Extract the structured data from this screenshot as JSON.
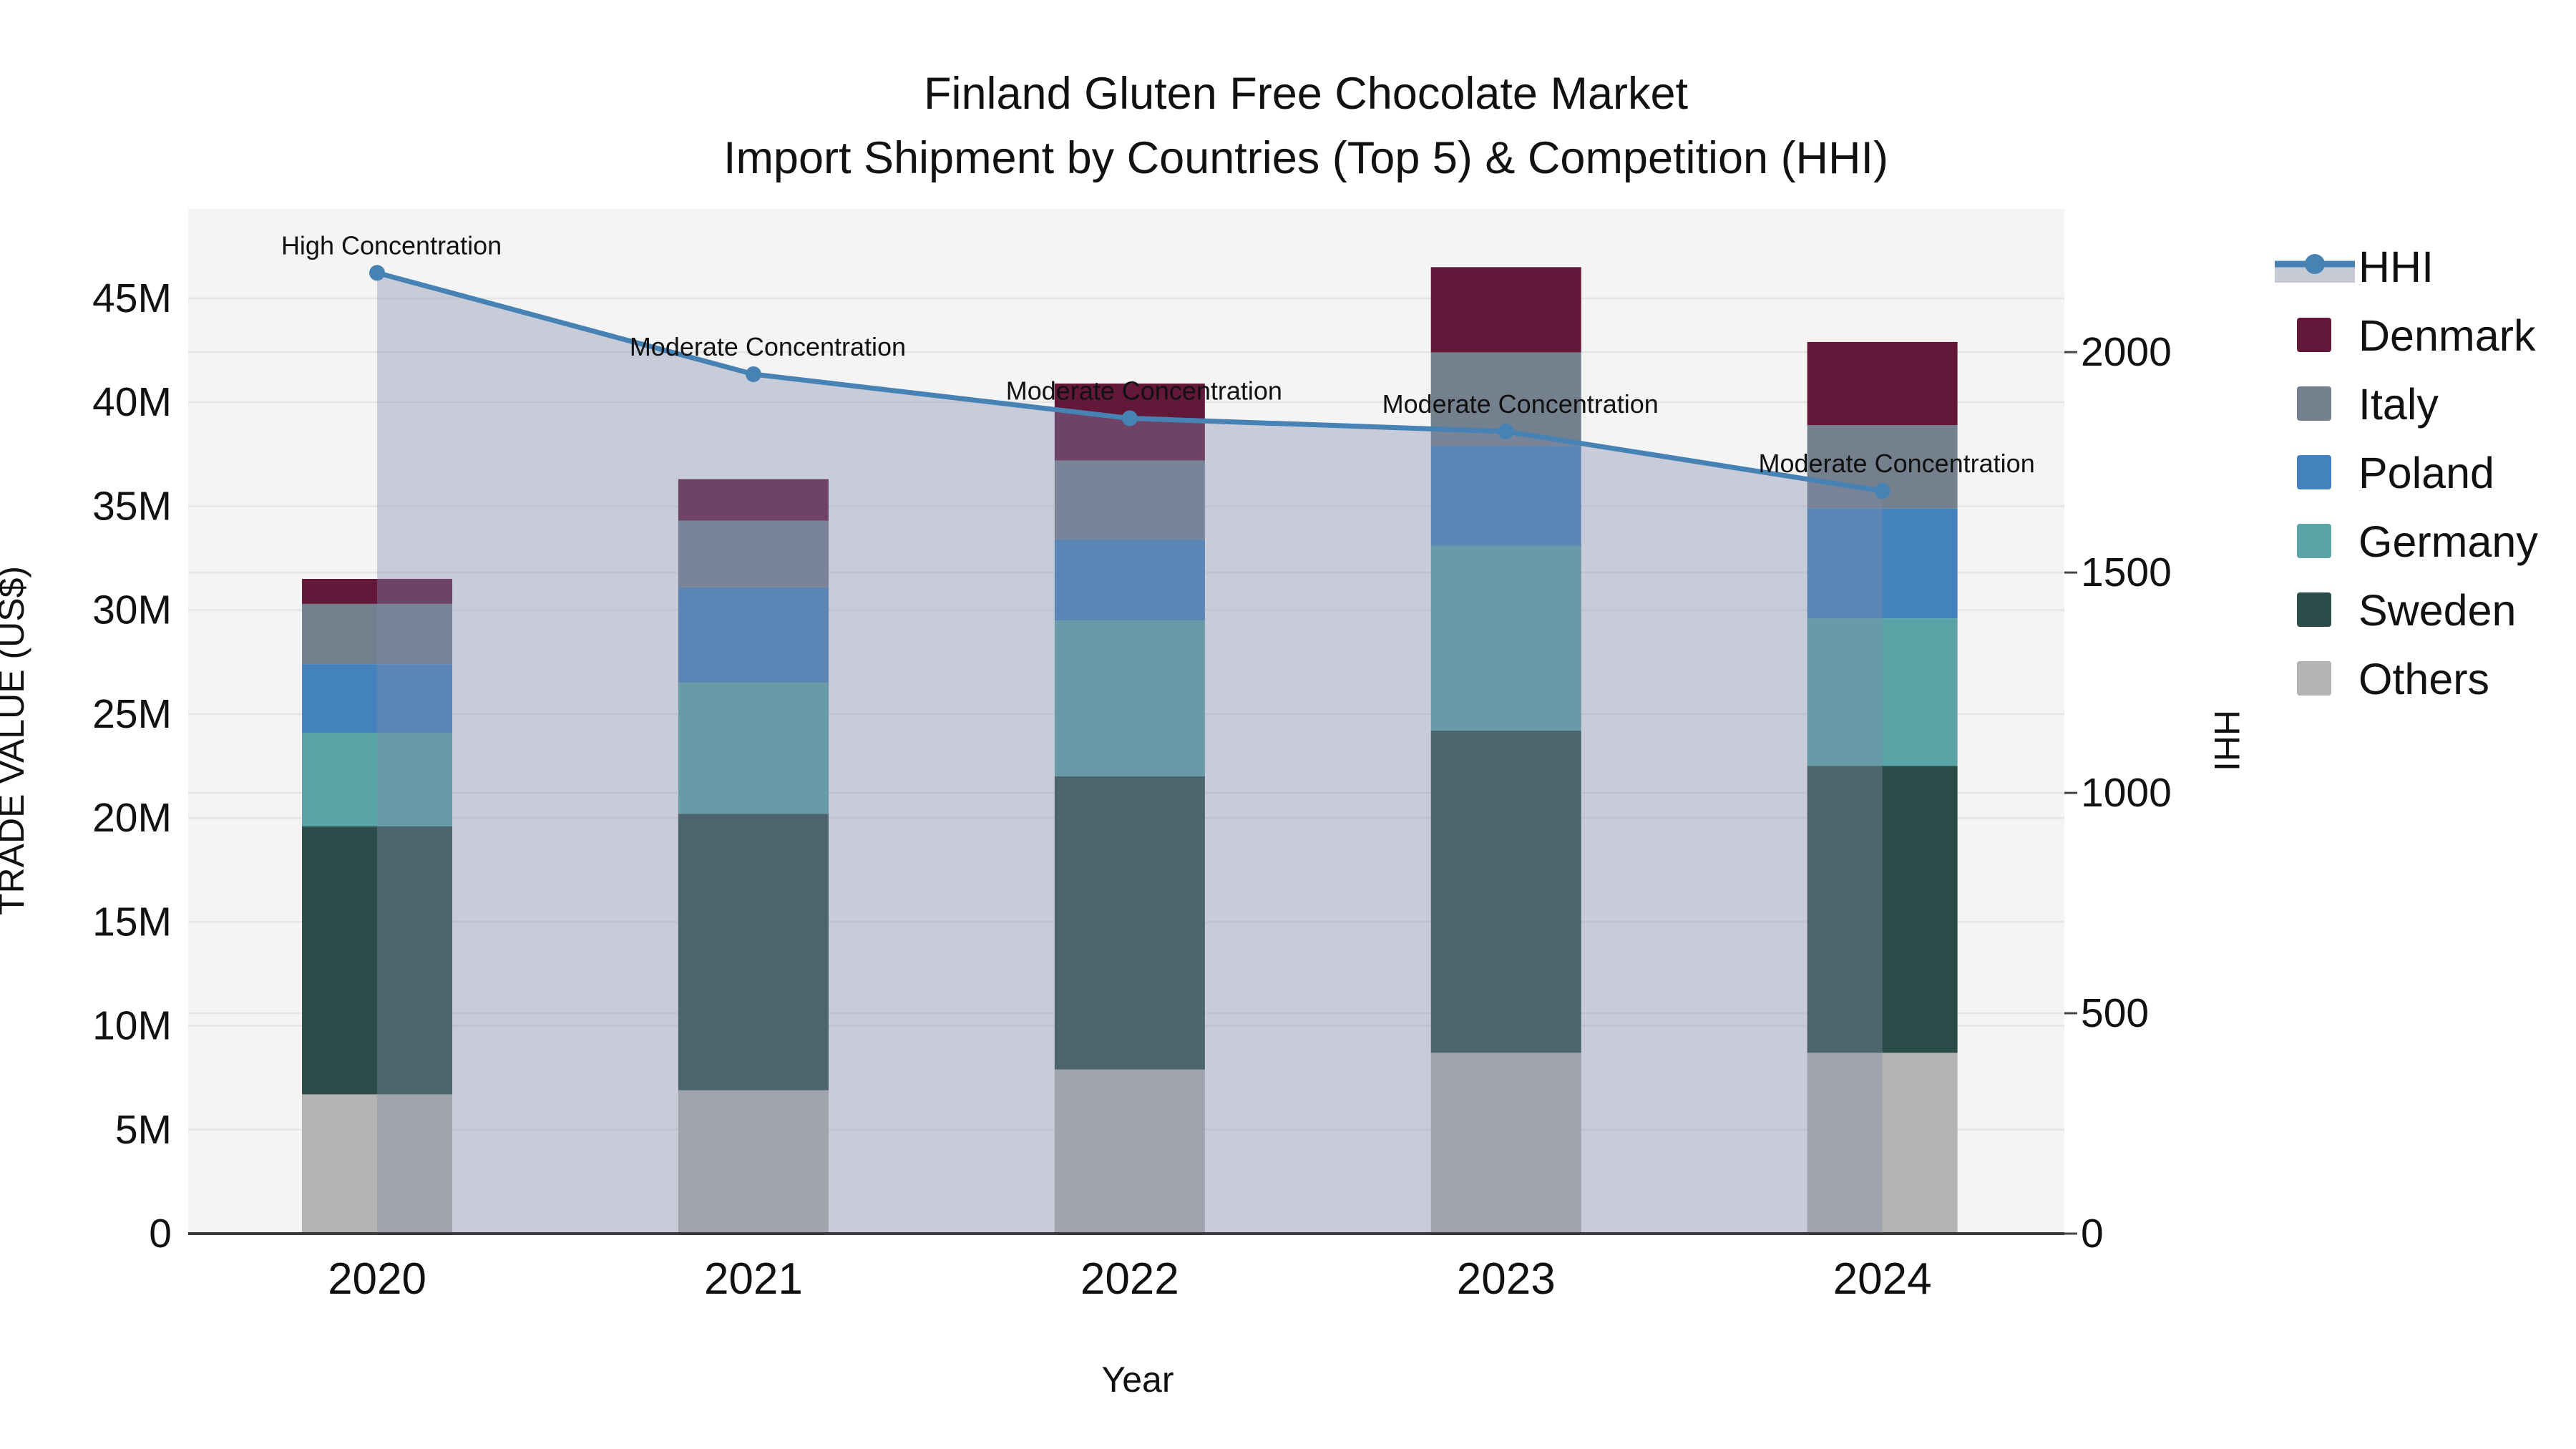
{
  "title": {
    "line1": "Finland Gluten Free Chocolate Market",
    "line2": "Import Shipment by Countries (Top 5) & Competition (HHI)"
  },
  "chart_data": {
    "type": "stacked-bar+line",
    "x_label": "Year",
    "categories": [
      "2020",
      "2021",
      "2022",
      "2023",
      "2024"
    ],
    "values_unit": "million US$",
    "series": [
      {
        "name": "Others",
        "color": "#b3b3b1",
        "values": [
          6.7,
          6.9,
          7.9,
          8.7,
          8.7
        ]
      },
      {
        "name": "Sweden",
        "color": "#2c4c49",
        "values": [
          12.9,
          13.3,
          14.1,
          15.5,
          13.8
        ]
      },
      {
        "name": "Germany",
        "color": "#5aa3a6",
        "values": [
          4.5,
          6.3,
          7.5,
          8.9,
          7.1
        ]
      },
      {
        "name": "Poland",
        "color": "#4382bc",
        "values": [
          3.3,
          4.6,
          3.9,
          4.8,
          5.3
        ]
      },
      {
        "name": "Italy",
        "color": "#75808e",
        "values": [
          2.9,
          3.2,
          3.8,
          4.5,
          4.0
        ]
      },
      {
        "name": "Denmark",
        "color": "#63183a",
        "values": [
          1.2,
          2.0,
          3.7,
          4.1,
          4.0
        ]
      }
    ],
    "bar_totals": [
      31.5,
      36.3,
      40.9,
      46.5,
      42.9
    ],
    "line_series": {
      "name": "HHI",
      "color": "#4682b4",
      "area_fill_color": "rgba(128,140,170,0.38)",
      "values": [
        2180,
        1950,
        1850,
        1820,
        1685
      ]
    },
    "annotations": [
      "High Concentration",
      "Moderate Concentration",
      "Moderate Concentration",
      "Moderate Concentration",
      "Moderate Concentration"
    ],
    "y_left": {
      "label": "TRADE VALUE (US$)",
      "ticks": [
        "0",
        "5M",
        "10M",
        "15M",
        "20M",
        "25M",
        "30M",
        "35M",
        "40M",
        "45M"
      ],
      "tick_values": [
        0,
        5,
        10,
        15,
        20,
        25,
        30,
        35,
        40,
        45
      ],
      "axis_max": 49.3
    },
    "y_right": {
      "label": "HHI",
      "ticks": [
        "0",
        "500",
        "1000",
        "1500",
        "2000"
      ],
      "tick_values": [
        0,
        500,
        1000,
        1500,
        2000
      ],
      "axis_max": 2325
    },
    "legend_order": [
      "HHI",
      "Denmark",
      "Italy",
      "Poland",
      "Germany",
      "Sweden",
      "Others"
    ],
    "grid": true,
    "legend_position": "right"
  },
  "colors": {
    "plot_background": "#f4f4f4",
    "page_background": "#ffffff",
    "gridline": "#e4e4e4",
    "axis_line": "#3a3a3a",
    "text": "#111111",
    "hhi_line": "#4682b4",
    "hhi_area_legend_swatch": "#c5cad5"
  }
}
